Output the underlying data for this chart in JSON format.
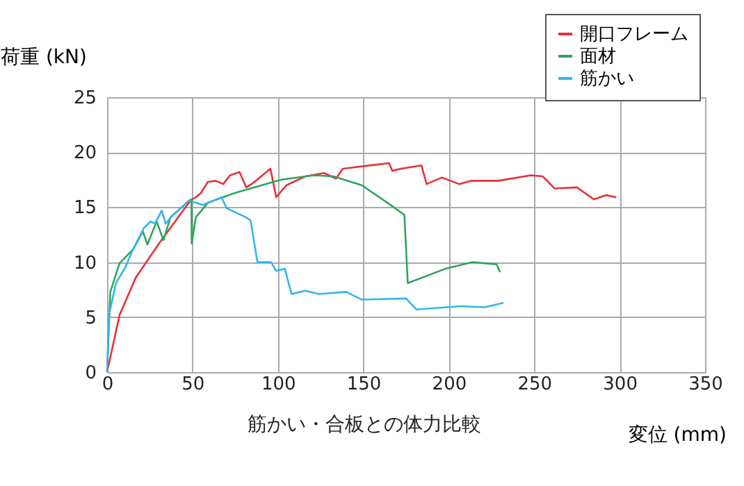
{
  "chart_data": {
    "type": "line",
    "xlabel": "変位 (mm)",
    "ylabel": "荷重 (kN)",
    "annotations": [
      "筋かい・合板との体力比較"
    ],
    "xlim": [
      0,
      350
    ],
    "xticks": [
      0,
      50,
      100,
      150,
      200,
      250,
      300,
      350
    ],
    "ylim": [
      0,
      25
    ],
    "yticks": [
      0,
      5,
      10,
      15,
      20,
      25
    ],
    "grid": true,
    "legend": "top right",
    "marker": "none",
    "line_style": "solid",
    "series": [
      {
        "name": "開口フレーム",
        "color": "#e8303a",
        "x": [
          0,
          7.3,
          16.8,
          30.4,
          45,
          49.4,
          52,
          55,
          59,
          63.5,
          68,
          72,
          77.5,
          81.5,
          85.5,
          95.6,
          99,
          105,
          116,
          127,
          134,
          138,
          165,
          167,
          172,
          184,
          187,
          196,
          206,
          213,
          229,
          248,
          255,
          262,
          275,
          285,
          292,
          298
        ],
        "values": [
          0,
          5.2,
          8.6,
          11.7,
          14.8,
          15.7,
          15.9,
          16.3,
          17.3,
          17.4,
          17.1,
          17.9,
          18.2,
          16.8,
          17.2,
          18.5,
          15.9,
          17,
          17.8,
          18.1,
          17.6,
          18.5,
          19.0,
          18.3,
          18.5,
          18.8,
          17.1,
          17.7,
          17.1,
          17.4,
          17.4,
          17.9,
          17.8,
          16.7,
          16.8,
          15.7,
          16.1,
          15.9
        ]
      },
      {
        "name": "面材",
        "color": "#2ea55a",
        "x": [
          0,
          1.9,
          7.3,
          15.4,
          20.9,
          23.6,
          29,
          33,
          37.2,
          48,
          49.4,
          49.5,
          52,
          59,
          75,
          102,
          121,
          132.6,
          149,
          165,
          174,
          176,
          198,
          214,
          228,
          230
        ],
        "values": [
          0,
          7.3,
          9.9,
          11.2,
          12.8,
          11.6,
          13.7,
          12,
          14.1,
          15.6,
          15.7,
          11.7,
          14.1,
          15.4,
          16.3,
          17.5,
          17.9,
          17.8,
          17.0,
          15.3,
          14.3,
          8.1,
          9.4,
          10.0,
          9.8,
          9.1
        ]
      },
      {
        "name": "筋かい",
        "color": "#33b5e8",
        "x": [
          0,
          1.1,
          5.2,
          10.6,
          14.7,
          21.5,
          25.5,
          28,
          32,
          34.3,
          37.5,
          48,
          56,
          67,
          70,
          81,
          84,
          88,
          96,
          99,
          104,
          108,
          116,
          124,
          140,
          149,
          175,
          181,
          207,
          221,
          232
        ],
        "values": [
          0,
          5.2,
          8.1,
          9.5,
          11.0,
          13.1,
          13.7,
          13.5,
          14.7,
          13.5,
          14.1,
          15.6,
          15.2,
          15.9,
          14.9,
          14.1,
          13.8,
          10.0,
          10.0,
          9.2,
          9.4,
          7.1,
          7.4,
          7.1,
          7.3,
          6.6,
          6.7,
          5.7,
          6.0,
          5.9,
          6.3
        ]
      }
    ]
  }
}
